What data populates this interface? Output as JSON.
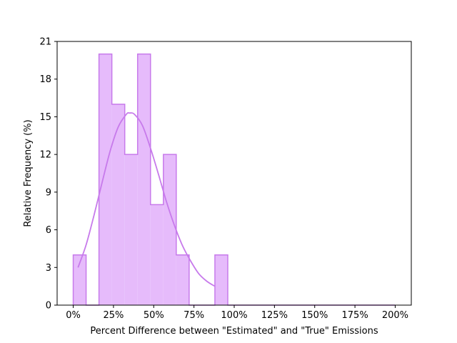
{
  "chart_data": {
    "type": "bar",
    "subtype": "histogram-step-with-kde",
    "title": "",
    "xlabel": "Percent Difference between \"Estimated\" and \"True\" Emissions",
    "ylabel": "Relative Frequency (%)",
    "xlim": [
      -10,
      210
    ],
    "ylim": [
      0,
      21
    ],
    "x_ticks": [
      0,
      25,
      50,
      75,
      100,
      125,
      150,
      175,
      200
    ],
    "x_tick_labels": [
      "0%",
      "25%",
      "50%",
      "75%",
      "100%",
      "125%",
      "150%",
      "175%",
      "200%"
    ],
    "y_ticks": [
      0,
      3,
      6,
      9,
      12,
      15,
      18,
      21
    ],
    "y_tick_labels": [
      "0",
      "3",
      "6",
      "9",
      "12",
      "15",
      "18",
      "21"
    ],
    "bin_edges": [
      0,
      8,
      16,
      24,
      32,
      40,
      48,
      56,
      64,
      72,
      80,
      88,
      96,
      104,
      112,
      120,
      128,
      136,
      144,
      152,
      160,
      168,
      176,
      184,
      192,
      200
    ],
    "values": [
      4,
      0,
      20,
      16,
      12,
      20,
      8,
      12,
      4,
      0,
      0,
      4,
      0,
      0,
      0,
      0,
      0,
      0,
      0,
      0,
      0,
      0,
      0,
      0,
      0
    ],
    "kde": {
      "x": [
        3,
        8,
        13,
        18,
        23,
        28,
        33,
        35,
        38,
        43,
        48,
        53,
        58,
        63,
        68,
        73,
        78,
        83,
        88
      ],
      "y": [
        3.0,
        4.8,
        7.2,
        9.8,
        12.3,
        14.2,
        15.2,
        15.3,
        15.2,
        14.3,
        12.5,
        10.4,
        8.2,
        6.3,
        4.7,
        3.5,
        2.5,
        1.9,
        1.5
      ]
    },
    "grid": false,
    "legend": null,
    "colors": {
      "bar_fill": "#e6bbfb",
      "bar_edge": "#c77aeb",
      "kde_line": "#c77aeb"
    }
  }
}
